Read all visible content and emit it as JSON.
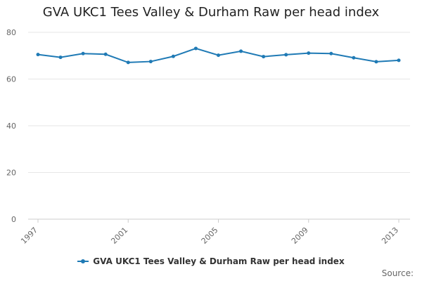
{
  "chart_data": {
    "type": "line",
    "title": "GVA UKC1 Tees Valley & Durham Raw per head index",
    "xlabel": "",
    "ylabel": "",
    "x": [
      1997,
      1998,
      1999,
      2000,
      2001,
      2002,
      2003,
      2004,
      2005,
      2006,
      2007,
      2008,
      2009,
      2010,
      2011,
      2012,
      2013
    ],
    "x_tick_labels": [
      "1997",
      "2001",
      "2005",
      "2009",
      "2013"
    ],
    "y_ticks": [
      0,
      20,
      40,
      60,
      80
    ],
    "ylim": [
      0,
      80
    ],
    "grid": true,
    "legend_position": "bottom",
    "series": [
      {
        "name": "GVA UKC1 Tees Valley & Durham Raw per head index",
        "color": "#1f7ab5",
        "values": [
          70.5,
          69.3,
          70.9,
          70.6,
          67.1,
          67.5,
          69.7,
          73.1,
          70.2,
          71.9,
          69.6,
          70.4,
          71.1,
          70.9,
          69.1,
          67.4,
          68.0
        ]
      }
    ]
  },
  "footer": {
    "source_label": "Source:"
  }
}
